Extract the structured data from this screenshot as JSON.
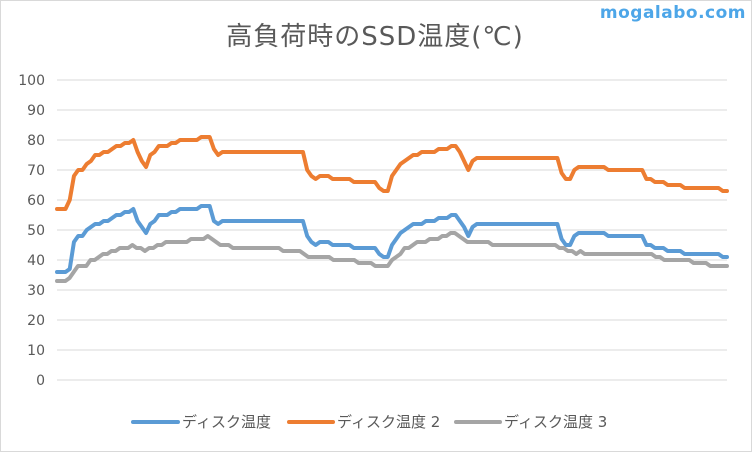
{
  "watermark": "mogalabo.com",
  "chart_data": {
    "type": "line",
    "title": "高負荷時のSSD温度(℃)",
    "xlabel": "",
    "ylabel": "",
    "ylim": [
      0,
      100
    ],
    "yticks": [
      0,
      10,
      20,
      30,
      40,
      50,
      60,
      70,
      80,
      90,
      100
    ],
    "grid": true,
    "legend_position": "bottom",
    "series": [
      {
        "name": "ディスク温度",
        "color": "#5b9bd5",
        "values": [
          36,
          36,
          36,
          37,
          46,
          48,
          48,
          50,
          51,
          52,
          52,
          53,
          53,
          54,
          55,
          55,
          56,
          56,
          57,
          53,
          51,
          49,
          52,
          53,
          55,
          55,
          55,
          56,
          56,
          57,
          57,
          57,
          57,
          57,
          58,
          58,
          58,
          53,
          52,
          53,
          53,
          53,
          53,
          53,
          53,
          53,
          53,
          53,
          53,
          53,
          53,
          53,
          53,
          53,
          53,
          53,
          53,
          53,
          53,
          48,
          46,
          45,
          46,
          46,
          46,
          45,
          45,
          45,
          45,
          45,
          44,
          44,
          44,
          44,
          44,
          44,
          42,
          41,
          41,
          45,
          47,
          49,
          50,
          51,
          52,
          52,
          52,
          53,
          53,
          53,
          54,
          54,
          54,
          55,
          55,
          53,
          51,
          48,
          51,
          52,
          52,
          52,
          52,
          52,
          52,
          52,
          52,
          52,
          52,
          52,
          52,
          52,
          52,
          52,
          52,
          52,
          52,
          52,
          52,
          47,
          45,
          45,
          48,
          49,
          49,
          49,
          49,
          49,
          49,
          49,
          48,
          48,
          48,
          48,
          48,
          48,
          48,
          48,
          48,
          45,
          45,
          44,
          44,
          44,
          43,
          43,
          43,
          43,
          42,
          42,
          42,
          42,
          42,
          42,
          42,
          42,
          42,
          41,
          41
        ]
      },
      {
        "name": "ディスク温度 2",
        "color": "#ed7d31",
        "values": [
          57,
          57,
          57,
          60,
          68,
          70,
          70,
          72,
          73,
          75,
          75,
          76,
          76,
          77,
          78,
          78,
          79,
          79,
          80,
          76,
          73,
          71,
          75,
          76,
          78,
          78,
          78,
          79,
          79,
          80,
          80,
          80,
          80,
          80,
          81,
          81,
          81,
          77,
          75,
          76,
          76,
          76,
          76,
          76,
          76,
          76,
          76,
          76,
          76,
          76,
          76,
          76,
          76,
          76,
          76,
          76,
          76,
          76,
          76,
          70,
          68,
          67,
          68,
          68,
          68,
          67,
          67,
          67,
          67,
          67,
          66,
          66,
          66,
          66,
          66,
          66,
          64,
          63,
          63,
          68,
          70,
          72,
          73,
          74,
          75,
          75,
          76,
          76,
          76,
          76,
          77,
          77,
          77,
          78,
          78,
          76,
          73,
          70,
          73,
          74,
          74,
          74,
          74,
          74,
          74,
          74,
          74,
          74,
          74,
          74,
          74,
          74,
          74,
          74,
          74,
          74,
          74,
          74,
          74,
          69,
          67,
          67,
          70,
          71,
          71,
          71,
          71,
          71,
          71,
          71,
          70,
          70,
          70,
          70,
          70,
          70,
          70,
          70,
          70,
          67,
          67,
          66,
          66,
          66,
          65,
          65,
          65,
          65,
          64,
          64,
          64,
          64,
          64,
          64,
          64,
          64,
          64,
          63,
          63
        ]
      },
      {
        "name": "ディスク温度 3",
        "color": "#a5a5a5",
        "values": [
          33,
          33,
          33,
          34,
          36,
          38,
          38,
          38,
          40,
          40,
          41,
          42,
          42,
          43,
          43,
          44,
          44,
          44,
          45,
          44,
          44,
          43,
          44,
          44,
          45,
          45,
          46,
          46,
          46,
          46,
          46,
          46,
          47,
          47,
          47,
          47,
          48,
          47,
          46,
          45,
          45,
          45,
          44,
          44,
          44,
          44,
          44,
          44,
          44,
          44,
          44,
          44,
          44,
          44,
          43,
          43,
          43,
          43,
          43,
          42,
          41,
          41,
          41,
          41,
          41,
          41,
          40,
          40,
          40,
          40,
          40,
          40,
          39,
          39,
          39,
          39,
          38,
          38,
          38,
          38,
          40,
          41,
          42,
          44,
          44,
          45,
          46,
          46,
          46,
          47,
          47,
          47,
          48,
          48,
          49,
          49,
          48,
          47,
          46,
          46,
          46,
          46,
          46,
          46,
          45,
          45,
          45,
          45,
          45,
          45,
          45,
          45,
          45,
          45,
          45,
          45,
          45,
          45,
          45,
          45,
          44,
          44,
          43,
          43,
          42,
          43,
          42,
          42,
          42,
          42,
          42,
          42,
          42,
          42,
          42,
          42,
          42,
          42,
          42,
          42,
          42,
          42,
          42,
          41,
          41,
          40,
          40,
          40,
          40,
          40,
          40,
          40,
          39,
          39,
          39,
          39,
          38,
          38,
          38,
          38,
          38
        ]
      }
    ]
  }
}
